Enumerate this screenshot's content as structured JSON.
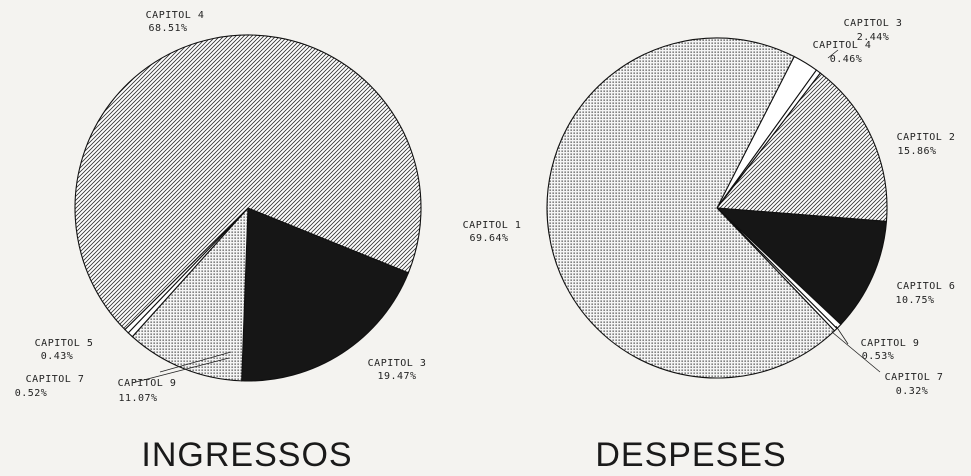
{
  "chart_data": [
    {
      "type": "pie",
      "title": "INGRESSOS",
      "slices": [
        {
          "name": "CAPITOL 3",
          "value": 19.47,
          "label": "19.47%",
          "fill": "dark"
        },
        {
          "name": "CAPITOL 9",
          "value": 11.07,
          "label": "11.07%",
          "fill": "dots"
        },
        {
          "name": "CAPITOL 7",
          "value": 0.52,
          "label": "0.52%",
          "fill": "white"
        },
        {
          "name": "CAPITOL 5",
          "value": 0.43,
          "label": "0.43%",
          "fill": "white"
        },
        {
          "name": "CAPITOL 4",
          "value": 68.51,
          "label": "68.51%",
          "fill": "hatch"
        }
      ]
    },
    {
      "type": "pie",
      "title": "DESPESES",
      "slices": [
        {
          "name": "CAPITOL 3",
          "value": 2.44,
          "label": "2.44%",
          "fill": "white"
        },
        {
          "name": "CAPITOL 4",
          "value": 0.46,
          "label": "0.46%",
          "fill": "white"
        },
        {
          "name": "CAPITOL 2",
          "value": 15.86,
          "label": "15.86%",
          "fill": "hatch"
        },
        {
          "name": "CAPITOL 6",
          "value": 10.75,
          "label": "10.75%",
          "fill": "dark"
        },
        {
          "name": "CAPITOL 9",
          "value": 0.53,
          "label": "0.53%",
          "fill": "white"
        },
        {
          "name": "CAPITOL 7",
          "value": 0.32,
          "label": "0.32%",
          "fill": "white"
        },
        {
          "name": "CAPITOL 1",
          "value": 69.64,
          "label": "69.64%",
          "fill": "dots"
        }
      ]
    }
  ]
}
